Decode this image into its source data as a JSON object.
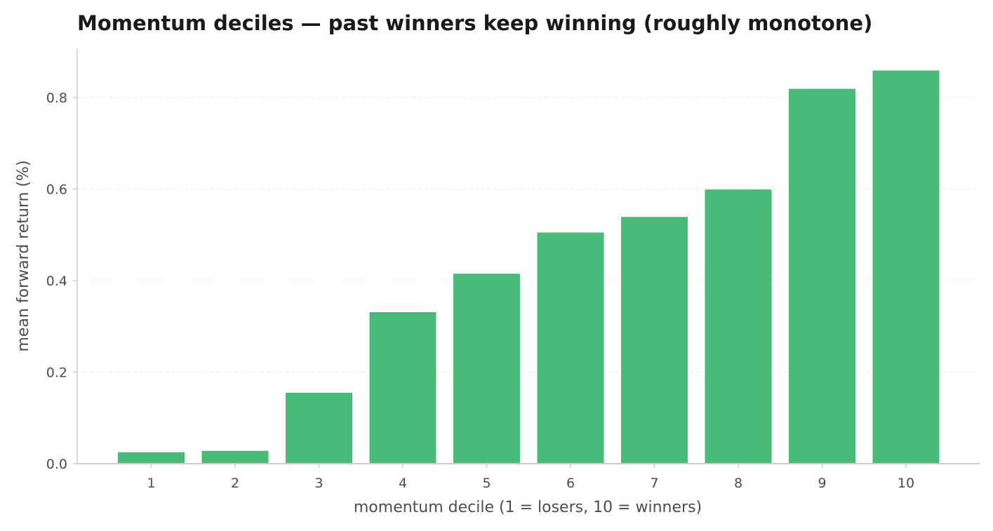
{
  "chart_data": {
    "type": "bar",
    "title": "Momentum deciles — past winners keep winning (roughly monotone)",
    "xlabel": "momentum decile (1 = losers, 10 = winners)",
    "ylabel": "mean forward return (%)",
    "categories": [
      "1",
      "2",
      "3",
      "4",
      "5",
      "6",
      "7",
      "8",
      "9",
      "10"
    ],
    "values": [
      0.025,
      0.028,
      0.155,
      0.331,
      0.415,
      0.505,
      0.539,
      0.599,
      0.819,
      0.859
    ],
    "ylim": [
      0,
      0.9
    ],
    "yticks": [
      0.0,
      0.2,
      0.4,
      0.6,
      0.8
    ],
    "ytick_labels": [
      "0.0",
      "0.2",
      "0.4",
      "0.6",
      "0.8"
    ],
    "grid": "horizontal dashed",
    "legend": "none",
    "colors": {
      "bar": "#48bb78",
      "axis": "#cccccc",
      "grid": "#eeeeee",
      "text": "#4d4d4d",
      "title": "#1a1a1a"
    }
  }
}
